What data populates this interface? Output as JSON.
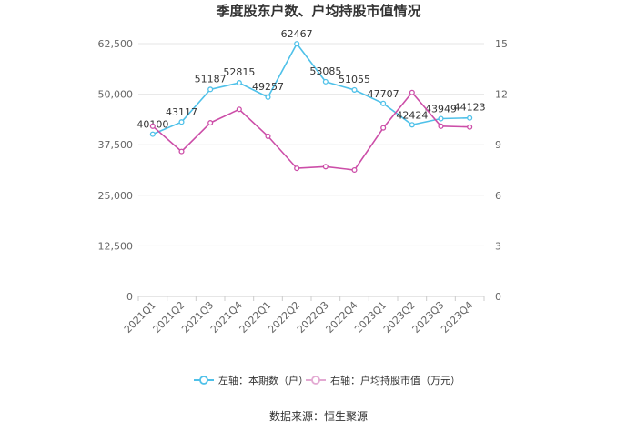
{
  "title": "季度股东户数、户均持股市值情况",
  "source": "数据来源：恒生聚源",
  "chart_data": {
    "type": "line",
    "categories": [
      "2021Q1",
      "2021Q2",
      "2021Q3",
      "2021Q4",
      "2022Q1",
      "2022Q2",
      "2022Q3",
      "2022Q4",
      "2023Q1",
      "2023Q2",
      "2023Q3",
      "2023Q4"
    ],
    "left_axis": {
      "min": 0,
      "max": 62500,
      "ticks": [
        "0",
        "12,500",
        "25,000",
        "37,500",
        "50,000",
        "62,500"
      ],
      "tick_values": [
        0,
        12500,
        25000,
        37500,
        50000,
        62500
      ]
    },
    "right_axis": {
      "min": 0,
      "max": 15,
      "ticks": [
        "0",
        "3",
        "6",
        "9",
        "12",
        "15"
      ],
      "tick_values": [
        0,
        3,
        6,
        9,
        12,
        15
      ]
    },
    "series": [
      {
        "name": "左轴：本期数（户）",
        "axis": "left",
        "color": "#4fc1e9",
        "values": [
          40100,
          43117,
          51187,
          52815,
          49257,
          62467,
          53085,
          51055,
          47707,
          42424,
          43949,
          44123
        ],
        "labels": [
          "40100",
          "43117",
          "51187",
          "52815",
          "49257",
          "62467",
          "53085",
          "51055",
          "47707",
          "42424",
          "43949",
          "44123"
        ]
      },
      {
        "name": "右轴：户均持股市值（万元）",
        "axis": "right",
        "color": "#cc4ea8",
        "values": [
          10.1,
          8.6,
          10.3,
          11.1,
          9.5,
          7.6,
          7.7,
          7.5,
          10.0,
          12.1,
          10.1,
          10.05
        ]
      }
    ],
    "grid": true,
    "legend_position": "bottom"
  }
}
